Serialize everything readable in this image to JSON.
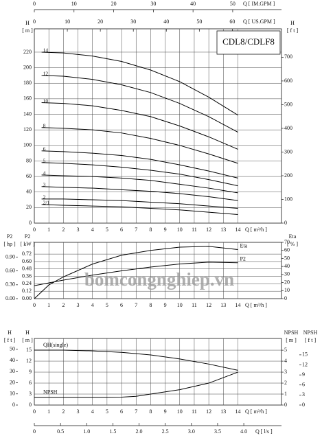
{
  "chart_data": [
    {
      "type": "line",
      "title": "CDL8/CDLF8",
      "x_label": "Q [ m³/h ]",
      "xlim": [
        0,
        17
      ],
      "xticks": [
        0,
        1,
        2,
        3,
        4,
        5,
        6,
        7,
        8,
        9,
        10,
        11,
        12,
        13,
        14
      ],
      "grid": true,
      "top_axes": [
        {
          "label": "Q [ IM.GPM ]",
          "xlim": [
            0,
            62.3
          ],
          "xticks": [
            0,
            10,
            20,
            30,
            40,
            50
          ]
        },
        {
          "label": "Q [ US.GPM ]",
          "xlim": [
            0,
            74.9
          ],
          "xticks": [
            0,
            10,
            20,
            30,
            40,
            50,
            60
          ]
        }
      ],
      "y_axes": [
        {
          "label": [
            "H",
            "[ m ]"
          ],
          "lim": [
            0,
            250
          ],
          "ticks": [
            0,
            20,
            40,
            60,
            80,
            100,
            120,
            140,
            160,
            180,
            200,
            220
          ]
        },
        {
          "label": [
            "H",
            "[ f t ]"
          ],
          "lim": [
            0,
            820
          ],
          "ticks": [
            0,
            100,
            200,
            300,
            400,
            500,
            600,
            700
          ]
        }
      ],
      "x": [
        0.5,
        2,
        4,
        6,
        8,
        10,
        12,
        14
      ],
      "series": [
        {
          "name": "14",
          "color": "#000000",
          "axis": 0,
          "values": [
            220,
            219,
            215,
            208,
            197,
            182,
            162,
            139
          ]
        },
        {
          "name": "12",
          "color": "#000000",
          "axis": 0,
          "values": [
            190,
            189,
            185,
            178,
            168,
            154,
            137,
            117
          ]
        },
        {
          "name": "10",
          "color": "#000000",
          "axis": 0,
          "values": [
            155,
            154,
            151,
            145,
            137,
            125,
            111,
            95
          ]
        },
        {
          "name": "8",
          "color": "#000000",
          "axis": 0,
          "values": [
            123,
            122,
            120,
            116,
            109,
            100,
            89,
            77
          ]
        },
        {
          "name": "6",
          "color": "#000000",
          "axis": 0,
          "values": [
            93,
            92,
            90,
            87,
            82,
            75,
            67,
            58
          ]
        },
        {
          "name": "5",
          "color": "#000000",
          "axis": 0,
          "values": [
            78,
            77,
            75,
            72,
            68,
            63,
            56,
            48
          ]
        },
        {
          "name": "4",
          "color": "#000000",
          "axis": 0,
          "values": [
            62,
            61,
            60,
            58,
            55,
            50,
            45,
            39
          ]
        },
        {
          "name": "3",
          "color": "#000000",
          "axis": 0,
          "values": [
            47,
            46,
            45,
            43,
            41,
            38,
            34,
            29
          ]
        },
        {
          "name": "2",
          "color": "#000000",
          "axis": 0,
          "values": [
            31,
            31,
            30,
            29,
            27,
            25,
            22,
            19
          ]
        },
        {
          "name": "2/1",
          "color": "#000000",
          "axis": 0,
          "values": [
            24,
            23,
            22,
            21,
            19,
            17,
            14,
            11
          ]
        }
      ]
    },
    {
      "type": "line",
      "x_label": "Q [ m³/h ]",
      "xlim": [
        0,
        17
      ],
      "xticks": [
        0,
        1,
        2,
        3,
        4,
        5,
        6,
        7,
        8,
        9,
        10,
        11,
        12,
        13,
        14
      ],
      "grid": true,
      "y_axes": [
        {
          "label": [
            "P2",
            "[ kW ]"
          ],
          "lim": [
            0,
            0.91
          ],
          "ticks": [
            {
              "value": 0,
              "label": "0.00"
            },
            {
              "value": 0.12,
              "label": "0.12"
            },
            {
              "value": 0.24,
              "label": "0.24"
            },
            {
              "value": 0.36,
              "label": "0.36"
            },
            {
              "value": 0.48,
              "label": "0.48"
            },
            {
              "value": 0.6,
              "label": "0.60"
            },
            {
              "value": 0.72,
              "label": "0.72"
            }
          ]
        },
        {
          "label": [
            "P2",
            "[ hp ]"
          ],
          "lim": [
            0,
            1.22
          ],
          "ticks": [
            {
              "value": 0,
              "label": "0.00"
            },
            {
              "value": 0.3,
              "label": "0.30"
            },
            {
              "value": 0.6,
              "label": "0.60"
            },
            {
              "value": 0.9,
              "label": "0.90"
            }
          ]
        },
        {
          "label": [
            "Eta",
            "[ % ]"
          ],
          "lim": [
            0,
            70
          ],
          "ticks": [
            0,
            10,
            20,
            30,
            40,
            50,
            60,
            70
          ]
        }
      ],
      "series": [
        {
          "name": "Eta",
          "color": "#000000",
          "axis": 2,
          "x": [
            0,
            1,
            2,
            4,
            6,
            8,
            10,
            12,
            14
          ],
          "values": [
            0,
            17,
            27,
            43,
            54,
            60,
            64,
            65,
            61
          ]
        },
        {
          "name": "P2",
          "color": "#000000",
          "axis": 0,
          "x": [
            0,
            2,
            4,
            6,
            8,
            10,
            12,
            14
          ],
          "values": [
            0.21,
            0.3,
            0.38,
            0.45,
            0.51,
            0.56,
            0.59,
            0.58
          ]
        }
      ]
    },
    {
      "type": "line",
      "x_label": "Q [ m³/h ]",
      "xlim": [
        0,
        17
      ],
      "xticks": [
        0,
        1,
        2,
        3,
        4,
        5,
        6,
        7,
        8,
        9,
        10,
        11,
        12,
        13,
        14
      ],
      "grid": true,
      "bottom_axes": [
        {
          "label": "Q [ l/s ]",
          "xlim": [
            0,
            4.72
          ],
          "xticks": [
            0,
            0.5,
            {
              "value": 1,
              "label": "1.0"
            },
            1.5,
            {
              "value": 2,
              "label": "2.0"
            },
            2.5,
            {
              "value": 3,
              "label": "3.0"
            },
            3.5,
            {
              "value": 4,
              "label": "4.0"
            }
          ]
        }
      ],
      "y_axes": [
        {
          "label": [
            "H",
            "[ m ]"
          ],
          "lim": [
            0,
            18.2
          ],
          "ticks": [
            0,
            3,
            6,
            9,
            12,
            15
          ]
        },
        {
          "label": [
            "H",
            "[ f t ]"
          ],
          "lim": [
            0,
            59.7
          ],
          "ticks": [
            0,
            10,
            20,
            30,
            40,
            50
          ]
        },
        {
          "label": [
            "NPSH",
            "[ m ]"
          ],
          "lim": [
            0,
            6.07
          ],
          "ticks": [
            0,
            1,
            2,
            3,
            4,
            5
          ]
        },
        {
          "label": [
            "NPSH",
            "[ f t ]"
          ],
          "lim": [
            0,
            19.9
          ],
          "ticks": [
            0,
            3,
            6,
            9,
            12,
            15
          ]
        }
      ],
      "series": [
        {
          "name": "QH(single)",
          "color": "#000000",
          "axis": 0,
          "x": [
            0,
            2,
            4,
            6,
            8,
            10,
            12,
            14
          ],
          "values": [
            15,
            15,
            14.8,
            14.4,
            13.7,
            12.6,
            11.2,
            9.5
          ]
        },
        {
          "name": "NPSH",
          "color": "#000000",
          "axis": 2,
          "x": [
            0,
            2,
            4,
            6,
            7,
            8,
            10,
            12,
            14
          ],
          "values": [
            0.7,
            0.7,
            0.7,
            0.72,
            0.8,
            1.0,
            1.4,
            2.0,
            3.0
          ]
        }
      ]
    }
  ],
  "watermark": "bomcongnghiep.vn"
}
